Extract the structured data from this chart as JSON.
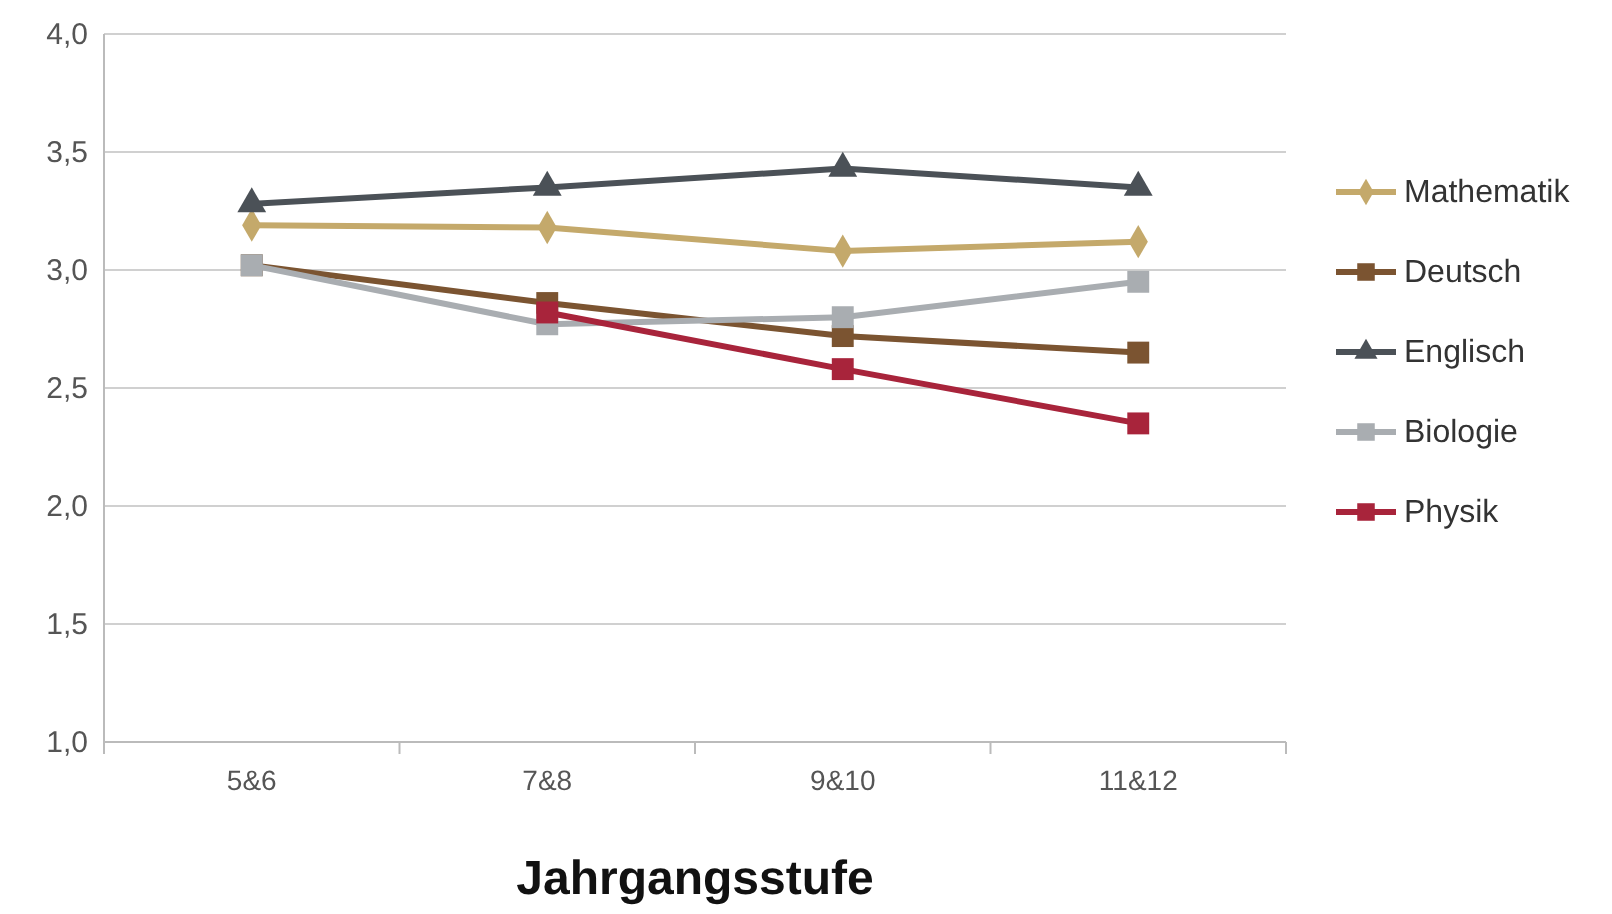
{
  "chart_data": {
    "type": "line",
    "xlabel": "Jahrgangsstufe",
    "categories": [
      "5&6",
      "7&8",
      "9&10",
      "11&12"
    ],
    "ylim": [
      1.0,
      4.0
    ],
    "yticks": [
      {
        "value": 1.0,
        "label": "1,0"
      },
      {
        "value": 1.5,
        "label": "1,5"
      },
      {
        "value": 2.0,
        "label": "2,0"
      },
      {
        "value": 2.5,
        "label": "2,5"
      },
      {
        "value": 3.0,
        "label": "3,0"
      },
      {
        "value": 3.5,
        "label": "3,5"
      },
      {
        "value": 4.0,
        "label": "4,0"
      }
    ],
    "grid": "y",
    "legend": "right",
    "series": [
      {
        "name": "Mathematik",
        "color": "#c4a96b",
        "marker": "diamond",
        "values": [
          3.19,
          3.18,
          3.08,
          3.12
        ]
      },
      {
        "name": "Deutsch",
        "color": "#7b5431",
        "marker": "square",
        "values": [
          3.02,
          2.86,
          2.72,
          2.65
        ]
      },
      {
        "name": "Englisch",
        "color": "#4b5157",
        "marker": "triangle",
        "values": [
          3.28,
          3.35,
          3.43,
          3.35
        ]
      },
      {
        "name": "Biologie",
        "color": "#a9adb1",
        "marker": "square",
        "values": [
          3.02,
          2.77,
          2.8,
          2.95
        ]
      },
      {
        "name": "Physik",
        "color": "#a8243b",
        "marker": "square",
        "values": [
          null,
          2.82,
          2.58,
          2.35
        ]
      }
    ]
  }
}
